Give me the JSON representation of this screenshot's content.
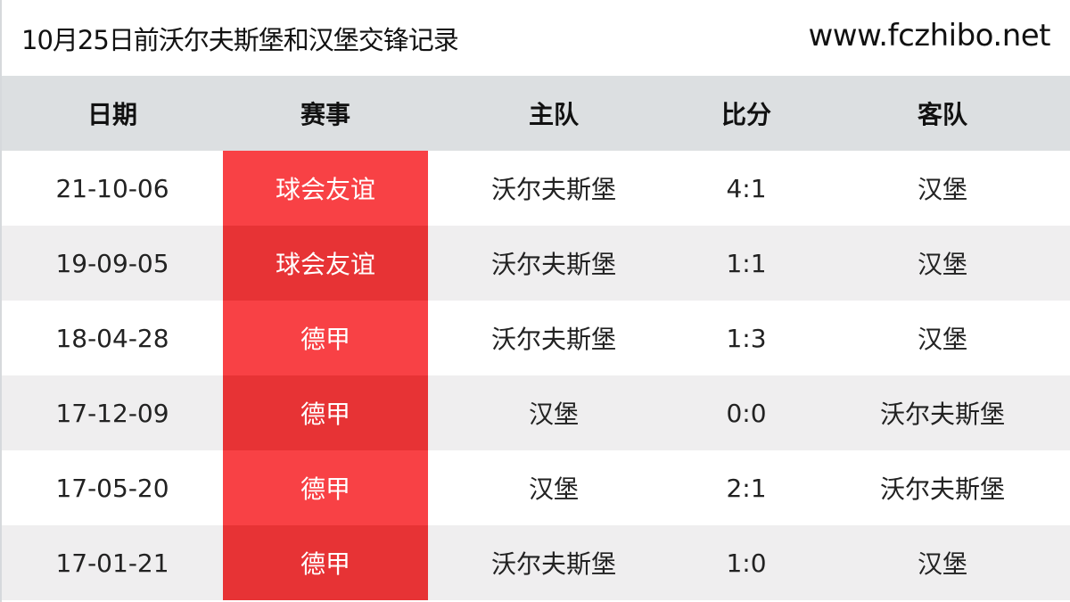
{
  "header": {
    "title": "10月25日前沃尔夫斯堡和汉堡交锋记录",
    "site": "www.fczhibo.net"
  },
  "colors": {
    "header_bg": "#dcdfe1",
    "competition_red": "#f84145",
    "competition_red_alt": "#e73335",
    "row_alt": "#efeeef"
  },
  "table": {
    "columns": [
      "日期",
      "赛事",
      "主队",
      "比分",
      "客队"
    ],
    "rows": [
      {
        "date": "21-10-06",
        "competition": "球会友谊",
        "home": "沃尔夫斯堡",
        "score": "4:1",
        "away": "汉堡"
      },
      {
        "date": "19-09-05",
        "competition": "球会友谊",
        "home": "沃尔夫斯堡",
        "score": "1:1",
        "away": "汉堡"
      },
      {
        "date": "18-04-28",
        "competition": "德甲",
        "home": "沃尔夫斯堡",
        "score": "1:3",
        "away": "汉堡"
      },
      {
        "date": "17-12-09",
        "competition": "德甲",
        "home": "汉堡",
        "score": "0:0",
        "away": "沃尔夫斯堡"
      },
      {
        "date": "17-05-20",
        "competition": "德甲",
        "home": "汉堡",
        "score": "2:1",
        "away": "沃尔夫斯堡"
      },
      {
        "date": "17-01-21",
        "competition": "德甲",
        "home": "沃尔夫斯堡",
        "score": "1:0",
        "away": "汉堡"
      }
    ]
  }
}
